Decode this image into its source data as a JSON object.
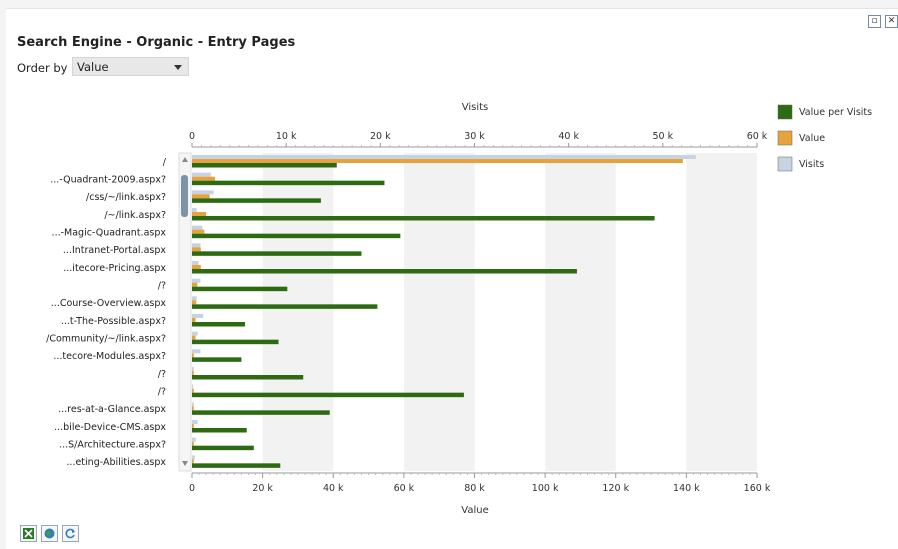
{
  "window": {
    "restore_icon": "restore-icon",
    "close_icon": "close-icon"
  },
  "title": "Search Engine - Organic - Entry Pages",
  "order": {
    "label": "Order by",
    "selected": "Value"
  },
  "footer": {
    "icons": [
      "excel-export-icon",
      "globe-icon",
      "refresh-icon"
    ]
  },
  "colors": {
    "value_per_visits": "#2d6a12",
    "value": "#e8a23c",
    "visits": "#c5d3e2"
  },
  "chart_data": {
    "type": "bar",
    "orientation": "horizontal",
    "categories": [
      "/",
      "...-Quadrant-2009.aspx?",
      "/css/~/link.aspx?",
      "/~/link.aspx?",
      "...-Magic-Quadrant.aspx",
      "...Intranet-Portal.aspx",
      "...itecore-Pricing.aspx",
      "/?",
      "...Course-Overview.aspx",
      "...t-The-Possible.aspx?",
      "/Community/~/link.aspx?",
      "...tecore-Modules.aspx?",
      "/?",
      "/?",
      "...res-at-a-Glance.aspx",
      "...bile-Device-CMS.aspx",
      "...S/Architecture.aspx?",
      "...eting-Abilities.aspx"
    ],
    "top_axis": {
      "label": "Visits",
      "range": [
        0,
        60000
      ],
      "ticks": [
        "0",
        "10 k",
        "20 k",
        "30 k",
        "40 k",
        "50 k",
        "60 k"
      ]
    },
    "bottom_axis": {
      "label": "Value",
      "range": [
        0,
        160000
      ],
      "ticks": [
        "0",
        "20 k",
        "40 k",
        "60 k",
        "80 k",
        "100 k",
        "120 k",
        "140 k",
        "160 k"
      ]
    },
    "series": [
      {
        "name": "Visits",
        "axis": "top",
        "values": [
          53500,
          2000,
          2300,
          500,
          1100,
          900,
          700,
          900,
          500,
          1200,
          600,
          900,
          200,
          100,
          200,
          600,
          400,
          300
        ]
      },
      {
        "name": "Value",
        "axis": "bottom",
        "values": [
          139000,
          6500,
          5000,
          4000,
          3500,
          2500,
          2500,
          1500,
          1200,
          1000,
          1000,
          500,
          500,
          500,
          500,
          500,
          500,
          500
        ]
      },
      {
        "name": "Value per Visits",
        "axis": "bottom",
        "values": [
          41000,
          54500,
          36500,
          131000,
          59000,
          48000,
          109000,
          27000,
          52500,
          15000,
          24500,
          14000,
          31500,
          77000,
          39000,
          15500,
          17500,
          25000
        ]
      }
    ],
    "legend": {
      "position": "right",
      "entries": [
        "Value per Visits",
        "Value",
        "Visits"
      ]
    },
    "grid": true
  }
}
